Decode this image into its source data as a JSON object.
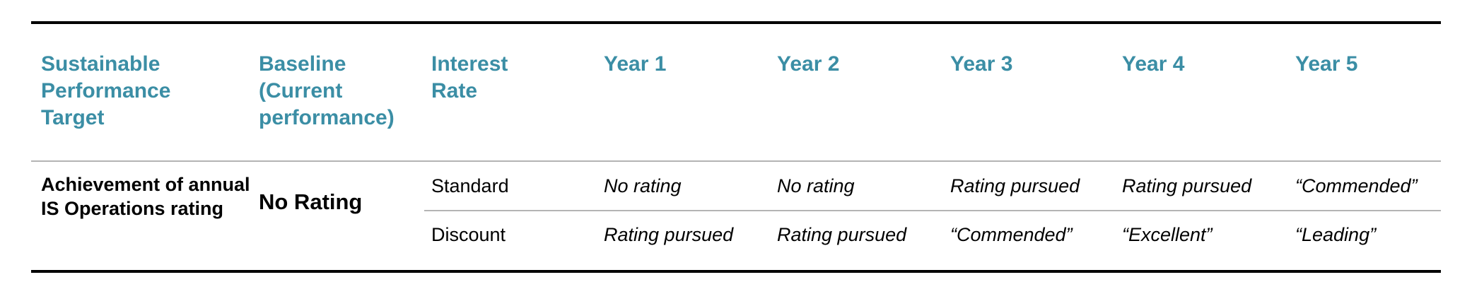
{
  "header": {
    "col_target": "Sustainable\nPerformance\nTarget",
    "col_baseline": "Baseline\n(Current\nperformance)",
    "col_rate": "Interest\nRate",
    "year1": "Year 1",
    "year2": "Year 2",
    "year3": "Year 3",
    "year4": "Year 4",
    "year5": "Year 5"
  },
  "row": {
    "target": "Achievement of annual IS Operations rating",
    "baseline": "No Rating",
    "standard": {
      "label": "Standard",
      "year1": "No rating",
      "year2": "No rating",
      "year3": "Rating pursued",
      "year4": "Rating pursued",
      "year5": "“Commended”"
    },
    "discount": {
      "label": "Discount",
      "year1": "Rating pursued",
      "year2": "Rating pursued",
      "year3": "“Commended”",
      "year4": "“Excellent”",
      "year5": "“Leading”"
    }
  },
  "colors": {
    "header_text": "#3b8ea5",
    "rule_dark": "#000000",
    "rule_light": "#b4b4b4"
  }
}
